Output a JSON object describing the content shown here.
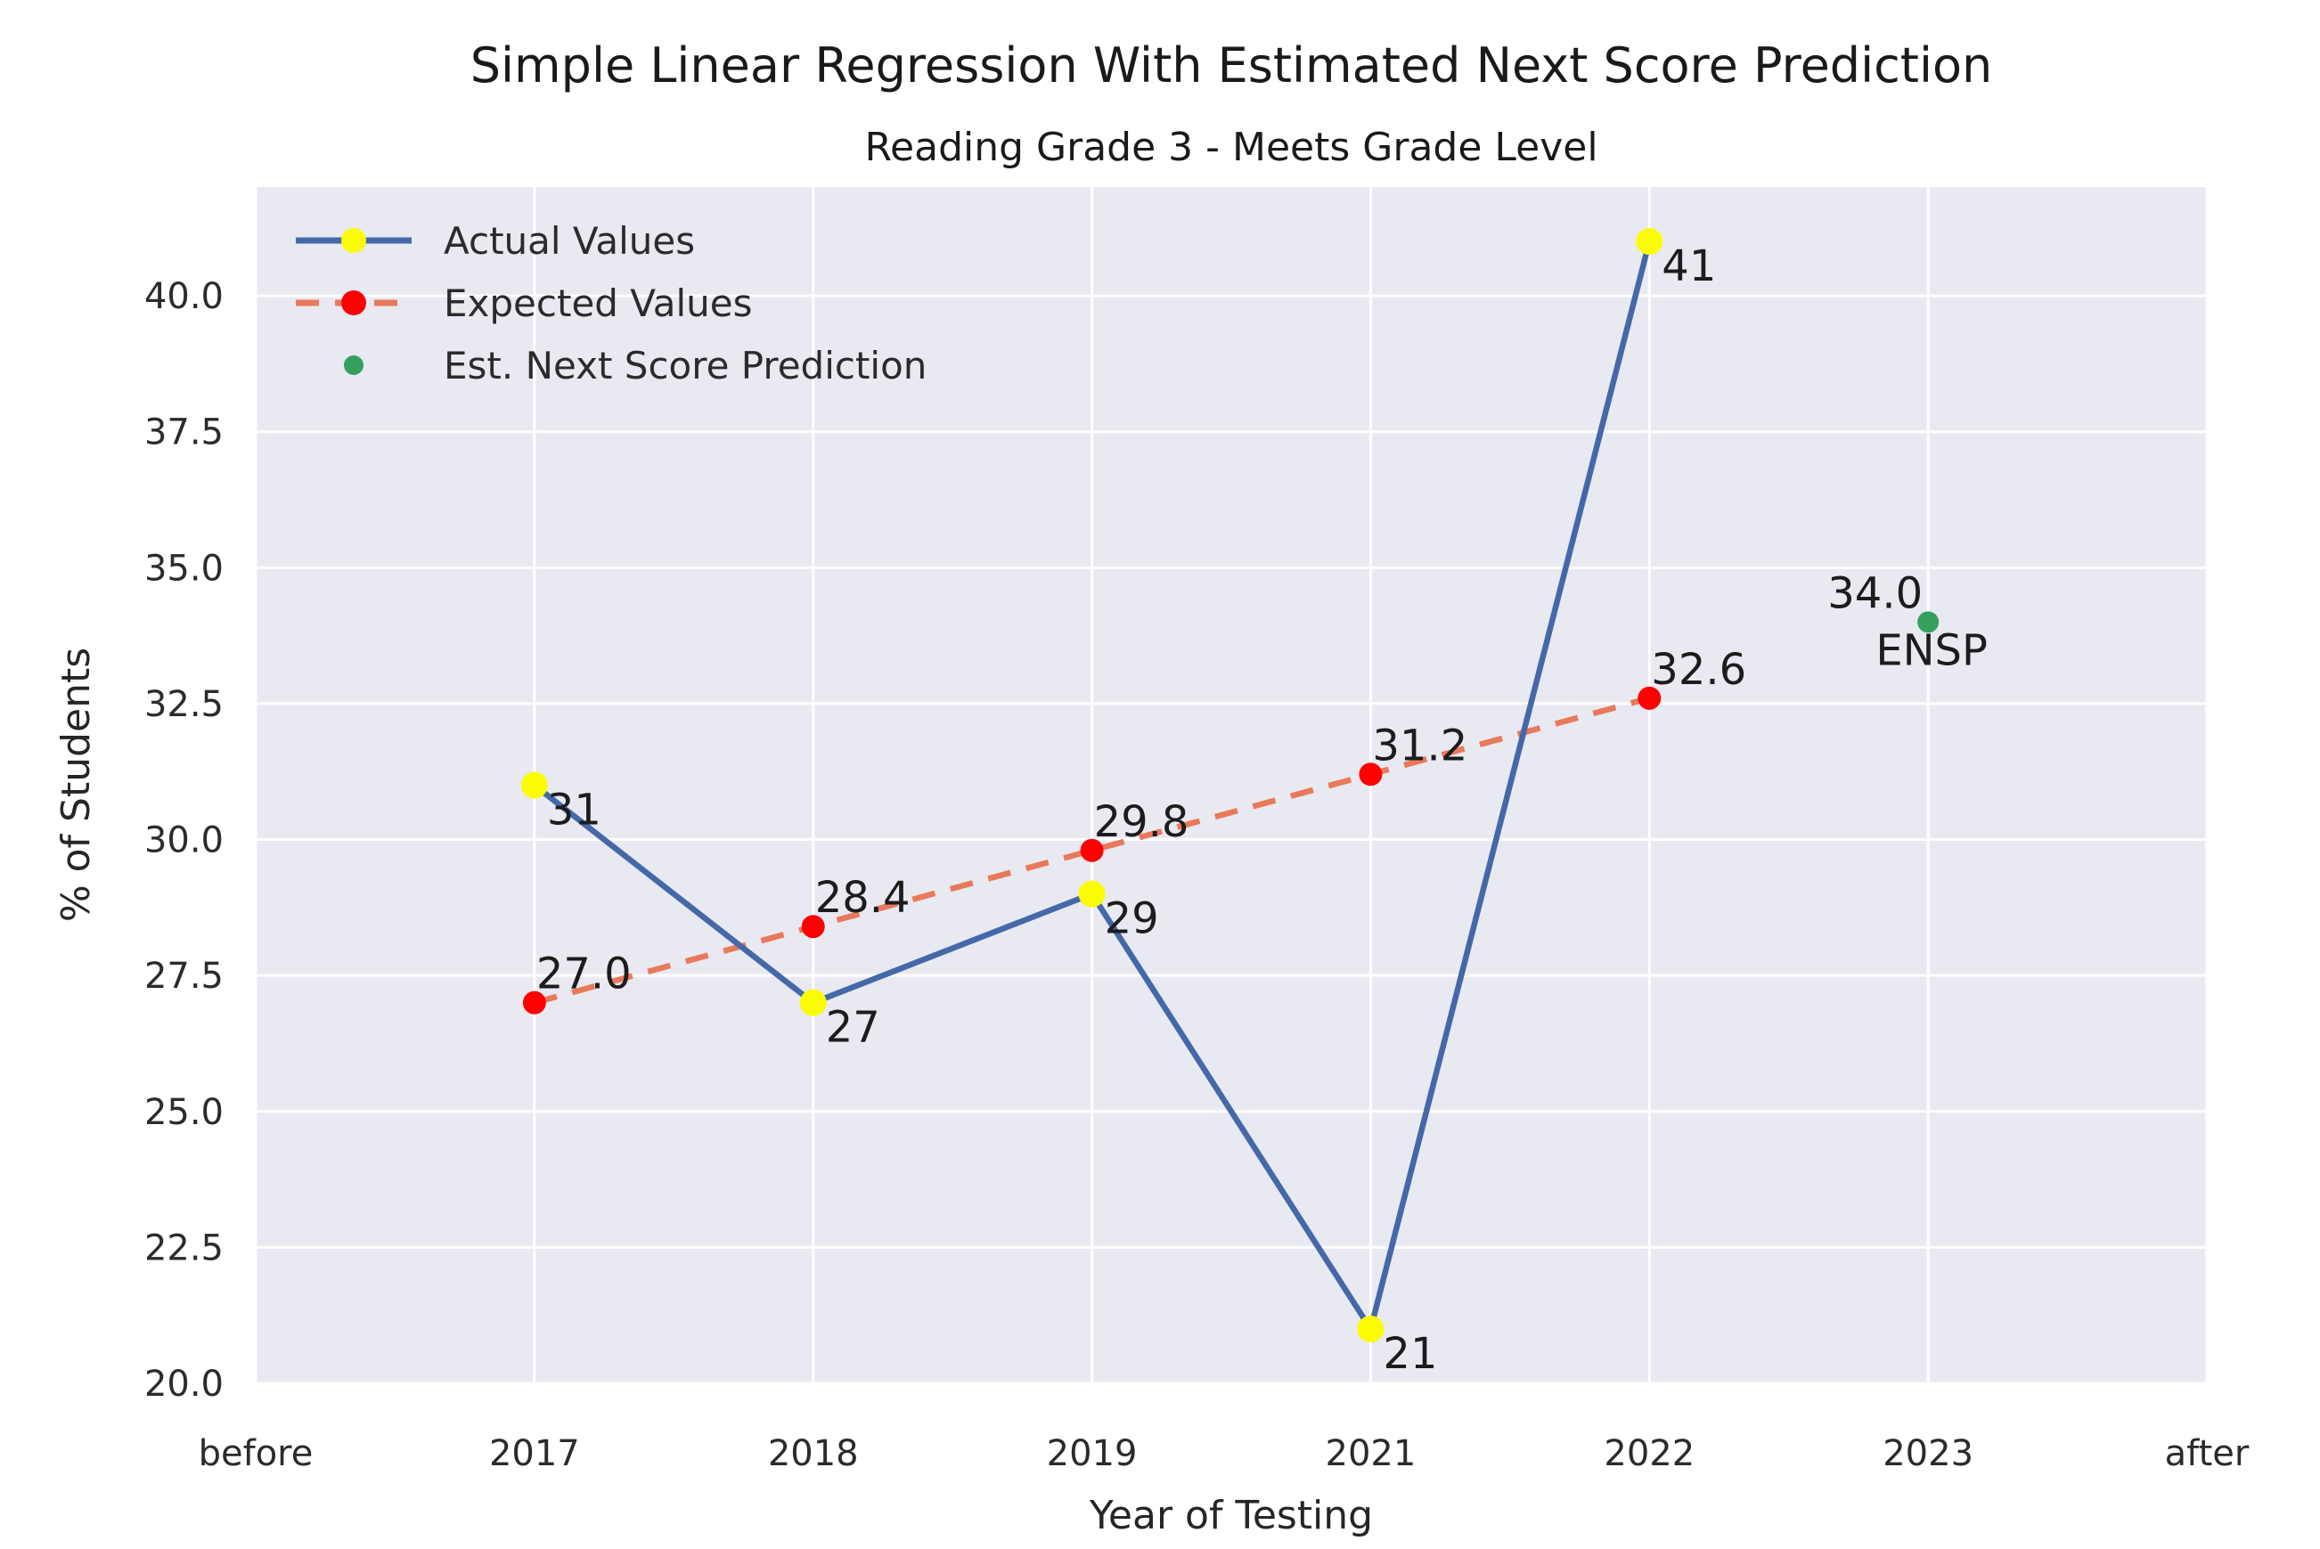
{
  "chart_data": {
    "type": "line",
    "title": "Simple Linear Regression With Estimated Next Score Prediction",
    "subtitle": "Reading Grade 3 - Meets Grade Level",
    "xlabel": "Year of Testing",
    "ylabel": "% of Students",
    "categories": [
      "before",
      "2017",
      "2018",
      "2019",
      "2021",
      "2022",
      "2023",
      "after"
    ],
    "x": [
      "2017",
      "2018",
      "2019",
      "2021",
      "2022"
    ],
    "yticks": [
      20.0,
      22.5,
      25.0,
      27.5,
      30.0,
      32.5,
      35.0,
      37.5,
      40.0
    ],
    "ytick_labels": [
      "20.0",
      "22.5",
      "25.0",
      "27.5",
      "30.0",
      "32.5",
      "35.0",
      "37.5",
      "40.0"
    ],
    "ylim": [
      20,
      42
    ],
    "grid": true,
    "legend_position": "upper left",
    "series": [
      {
        "name": "Actual Values",
        "values": [
          31,
          27,
          29,
          21,
          41
        ],
        "labels": [
          "31",
          "27",
          "29",
          "21",
          "41"
        ],
        "line_style": "solid",
        "line_color": "#4468a8",
        "marker_color": "#fcfc00"
      },
      {
        "name": "Expected Values",
        "values": [
          27.0,
          28.4,
          29.8,
          31.2,
          32.6
        ],
        "labels": [
          "27.0",
          "28.4",
          "29.8",
          "31.2",
          "32.6"
        ],
        "line_style": "dashed",
        "line_color": "#e8795a",
        "marker_color": "#ff0000"
      }
    ],
    "prediction": {
      "name": "Est. Next Score Prediction",
      "x": "2023",
      "value": 34.0,
      "label": "34.0",
      "sublabel": "ENSP",
      "marker_color": "#35a05e"
    },
    "style": {
      "plot_bg": "#e9e9f2",
      "grid_color": "#ffffff",
      "figure_bg": "#ffffff"
    }
  }
}
